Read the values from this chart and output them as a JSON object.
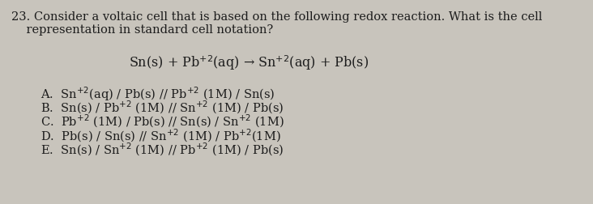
{
  "background_color": "#c8c4bc",
  "question_number": "23.",
  "question_line1": "Consider a voltaic cell that is based on the following redox reaction. What is the cell",
  "question_line2": "    representation in standard cell notation?",
  "reaction_left": "Sn(s) + Pb",
  "reaction_mid": "+2",
  "reaction_text": "Sn(s) + Pb$^{+2}$(aq) → Sn$^{+2}$(aq) + Pb(s)",
  "options": [
    "A.  Sn$^{+2}$(aq) / Pb(s) // Pb$^{+2}$ (1M) / Sn(s)",
    "B.  Sn(s) / Pb$^{+2}$ (1M) // Sn$^{+2}$ (1M) / Pb(s)",
    "C.  Pb$^{+2}$ (1M) / Pb(s) // Sn(s) / Sn$^{+2}$ (1M)",
    "D.  Pb(s) / Sn(s) // Sn$^{+2}$ (1M) / Pb$^{+2}$(1M)",
    "E.  Sn(s) / Sn$^{+2}$ (1M) // Pb$^{+2}$ (1M) / Pb(s)"
  ],
  "font_size_question": 10.5,
  "font_size_reaction": 11.5,
  "font_size_options": 10.5,
  "text_color": "#1c1c1c",
  "fig_width": 7.32,
  "fig_height": 2.53,
  "dpi": 100
}
